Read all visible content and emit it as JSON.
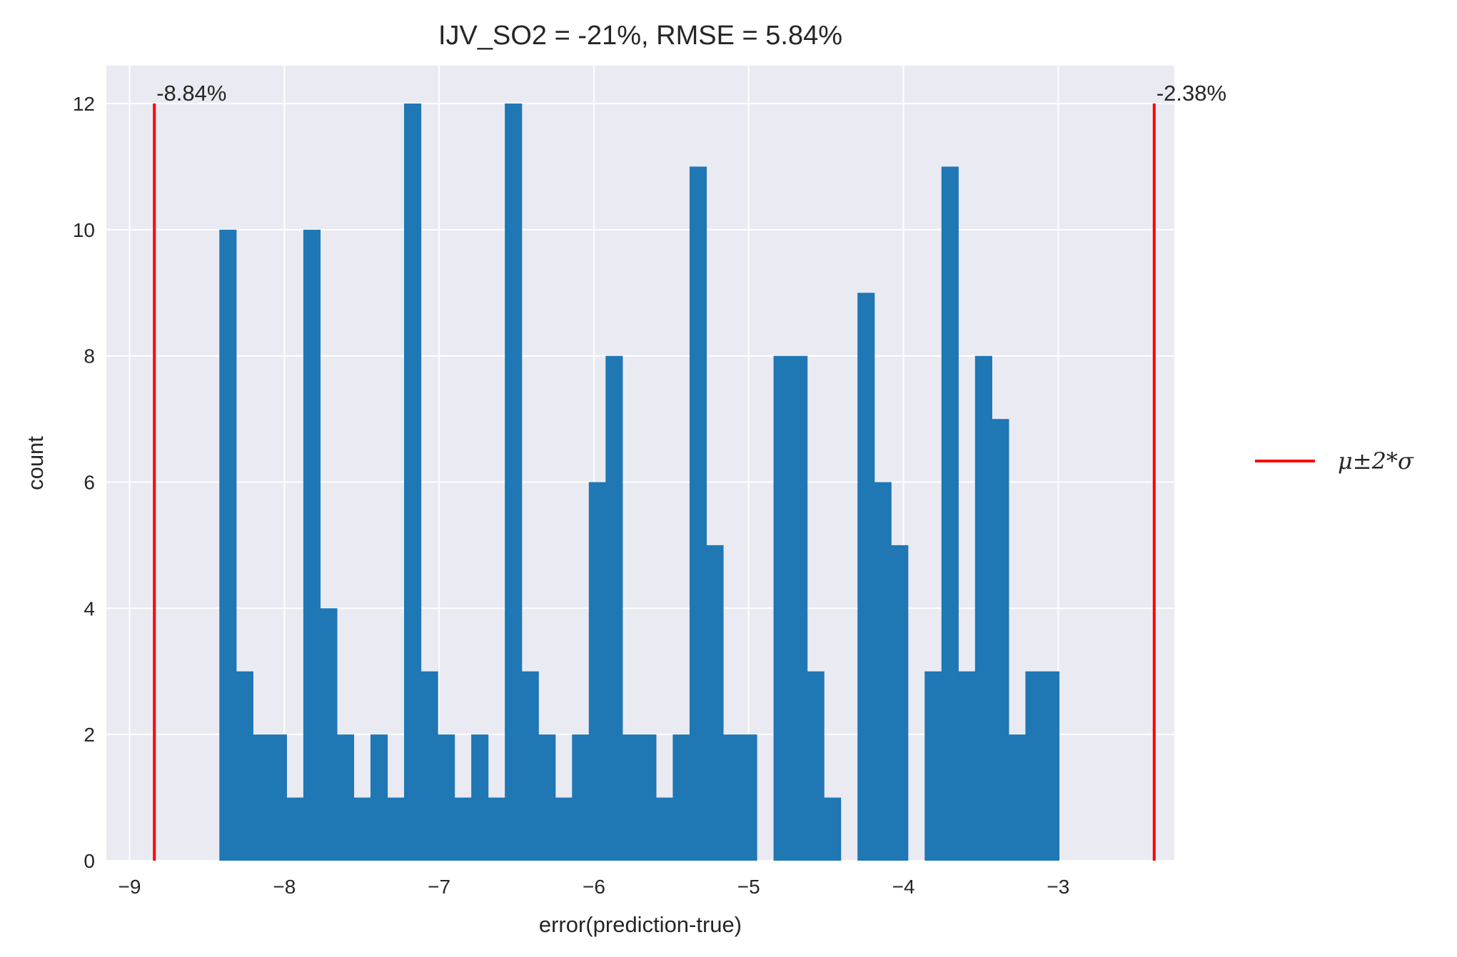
{
  "chart_data": {
    "type": "bar",
    "title": "IJV_SO2 = -21%, RMSE = 5.84%",
    "xlabel": "error(prediction-true)",
    "ylabel": "count",
    "xlim": [
      -9.15,
      -2.25
    ],
    "ylim": [
      0,
      12.6
    ],
    "xticks": [
      -9,
      -8,
      -7,
      -6,
      -5,
      -4,
      -3
    ],
    "xtick_labels": [
      "−9",
      "−8",
      "−7",
      "−6",
      "−5",
      "−4",
      "−3"
    ],
    "yticks": [
      0,
      2,
      4,
      6,
      8,
      10,
      12
    ],
    "ytick_labels": [
      "0",
      "2",
      "4",
      "6",
      "8",
      "10",
      "12"
    ],
    "grid": true,
    "bin_start": -8.42,
    "bin_width": 0.1085,
    "counts": [
      10,
      3,
      2,
      2,
      1,
      10,
      4,
      2,
      1,
      2,
      1,
      12,
      3,
      2,
      1,
      2,
      1,
      12,
      3,
      2,
      1,
      2,
      6,
      8,
      2,
      2,
      1,
      2,
      11,
      5,
      2,
      2,
      0,
      8,
      8,
      3,
      1,
      0,
      9,
      6,
      5,
      0,
      3,
      11,
      3,
      8,
      7,
      2,
      3,
      3
    ],
    "reference_lines": [
      {
        "x": -8.84,
        "y_top": 12,
        "label": "-8.84%"
      },
      {
        "x": -2.38,
        "y_top": 12,
        "label": "-2.38%"
      }
    ],
    "line_color": "#ff0000",
    "bar_color": "#1f77b4",
    "legend": {
      "label": "μ±2*σ",
      "placement": "center-right outside"
    }
  }
}
